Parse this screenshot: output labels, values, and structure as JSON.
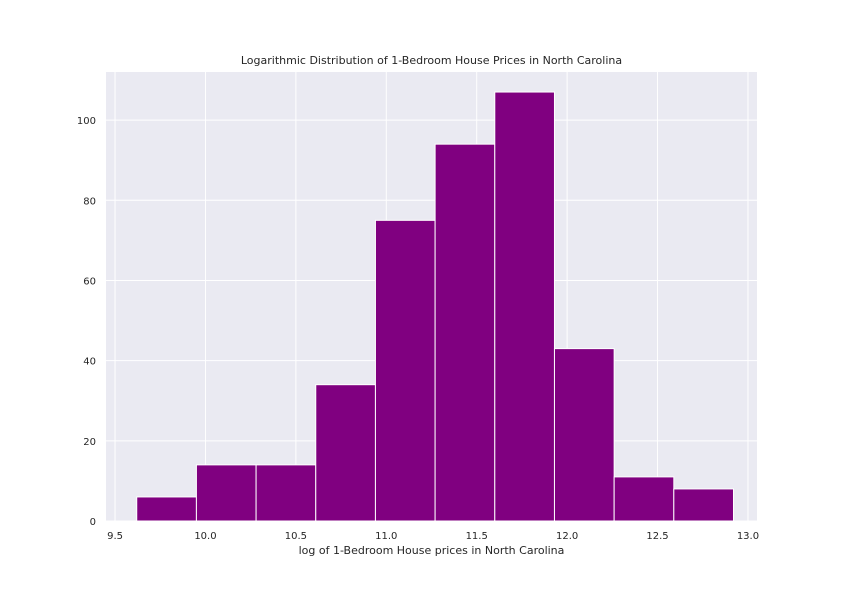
{
  "chart_data": {
    "type": "bar",
    "title": "Logarithmic Distribution of 1-Bedroom House Prices in North Carolina",
    "xlabel": "log of 1-Bedroom House prices in North Carolina",
    "ylabel": "",
    "xlim": [
      9.45,
      13.05
    ],
    "ylim": [
      0,
      112
    ],
    "xticks": [
      "9.5",
      "10.0",
      "10.5",
      "11.0",
      "11.5",
      "12.0",
      "12.5",
      "13.0"
    ],
    "yticks": [
      "0",
      "20",
      "40",
      "60",
      "80",
      "100"
    ],
    "bin_edges": [
      9.62,
      9.95,
      10.28,
      10.61,
      10.94,
      11.27,
      11.6,
      11.93,
      12.26,
      12.59,
      12.92
    ],
    "values": [
      6,
      14,
      14,
      34,
      75,
      94,
      107,
      43,
      11,
      8
    ],
    "bar_color": "#800080",
    "background_color": "#eaeaf2",
    "grid": true
  }
}
